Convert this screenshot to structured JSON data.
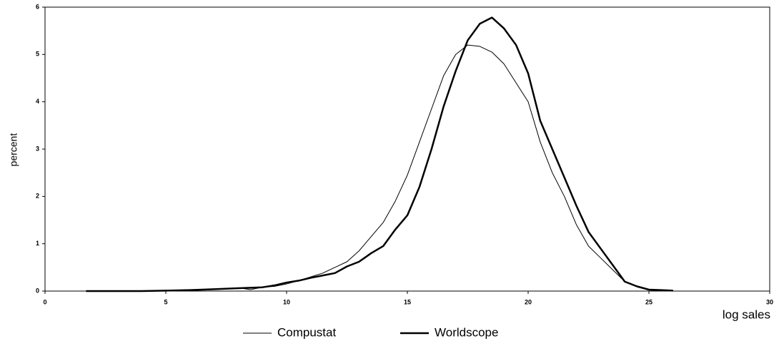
{
  "chart_data": {
    "type": "line",
    "x_label": "log sales",
    "y_label": "percent",
    "x": [
      1.7,
      3,
      4,
      5,
      6,
      7,
      8,
      8.5,
      9,
      9.5,
      10,
      10.5,
      11,
      11.5,
      12,
      12.5,
      13,
      13.5,
      14,
      14.5,
      15,
      15.5,
      16,
      16.5,
      17,
      17.5,
      18,
      18.5,
      19,
      19.5,
      20,
      20.5,
      21,
      21.5,
      22,
      22.5,
      23,
      23.5,
      24,
      24.5,
      25,
      25.5,
      26
    ],
    "series": [
      {
        "name": "Compustat",
        "color": "#000000",
        "width": 1,
        "values": [
          0,
          0,
          0,
          0.01,
          0.02,
          0.03,
          0.07,
          0.03,
          0.08,
          0.1,
          0.15,
          0.22,
          0.3,
          0.38,
          0.5,
          0.62,
          0.85,
          1.15,
          1.45,
          1.9,
          2.45,
          3.15,
          3.85,
          4.55,
          5.0,
          5.2,
          5.17,
          5.05,
          4.8,
          4.4,
          4.0,
          3.15,
          2.5,
          2.0,
          1.4,
          0.95,
          0.7,
          0.45,
          0.2,
          0.1,
          0.03,
          0.02,
          0.01
        ]
      },
      {
        "name": "Worldscope",
        "color": "#000000",
        "width": 2.5,
        "values": [
          0,
          0,
          0,
          0.01,
          0.02,
          0.04,
          0.06,
          0.07,
          0.08,
          0.12,
          0.18,
          0.22,
          0.28,
          0.33,
          0.38,
          0.52,
          0.62,
          0.8,
          0.95,
          1.3,
          1.6,
          2.2,
          3.0,
          3.9,
          4.65,
          5.3,
          5.65,
          5.78,
          5.55,
          5.2,
          4.6,
          3.6,
          3.0,
          2.4,
          1.8,
          1.25,
          0.9,
          0.55,
          0.2,
          0.1,
          0.03,
          0.02,
          0.01
        ]
      }
    ],
    "xlim": [
      0,
      30
    ],
    "xticks": [
      0,
      5,
      10,
      15,
      20,
      25,
      30
    ],
    "ylim": [
      0,
      6
    ],
    "yticks": [
      0,
      1,
      2,
      3,
      4,
      5,
      6
    ],
    "legend": "bottom"
  }
}
